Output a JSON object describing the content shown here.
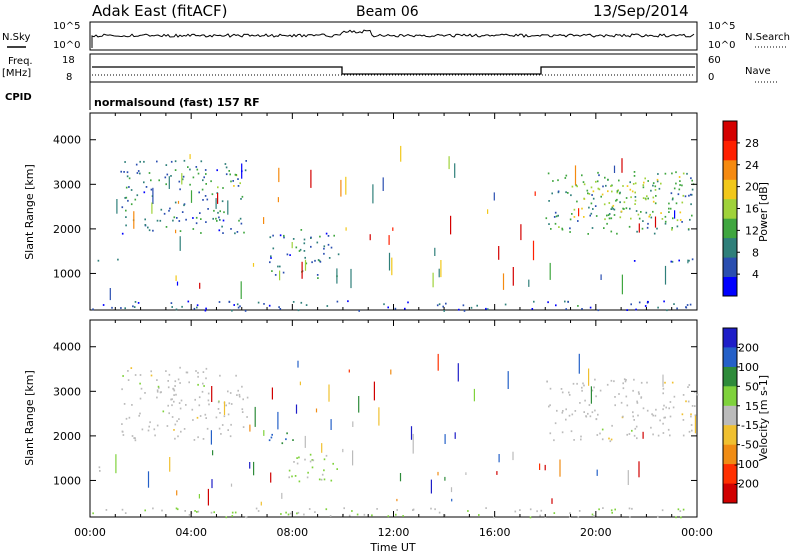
{
  "header": {
    "station": "Adak East (fitACF)",
    "beam": "Beam 06",
    "date": "13/Sep/2014"
  },
  "panels": {
    "nsky_label": "N.Sky",
    "nsky_ticks": [
      "10^5",
      "10^0"
    ],
    "nsearch_label": "N.Search",
    "nsearch_ticks": [
      "10^5",
      "10^0"
    ],
    "freq_label": "Freq.",
    "freq_unit": "[MHz]",
    "freq_ticks": [
      "18",
      "8"
    ],
    "nave_label": "Nave",
    "nave_ticks": [
      "60",
      "0"
    ],
    "cpid_label": "CPID",
    "cpid_value": "normalsound (fast) 157 RF"
  },
  "colors": {
    "power": [
      "#0000ff",
      "#2a4eb0",
      "#2f7f7a",
      "#3fa63f",
      "#9fd23a",
      "#f2c81a",
      "#f58a10",
      "#ff2000",
      "#d40000"
    ],
    "velocity": [
      "#1e1ec8",
      "#2460c8",
      "#2e8b3a",
      "#7fd23c",
      "#bbbbbb",
      "#f0c030",
      "#f08c14",
      "#ff3000",
      "#d00000"
    ]
  },
  "chart_data": [
    {
      "type": "heatmap",
      "ylabel": "Slant Range [km]",
      "ylim": [
        180,
        4600
      ],
      "yticks": [
        1000,
        2000,
        3000,
        4000
      ],
      "xlabel": "Time UT",
      "xlim": [
        0,
        24
      ],
      "xticks": [
        "00:00",
        "04:00",
        "08:00",
        "12:00",
        "16:00",
        "20:00",
        "00:00"
      ],
      "colorbar_label": "Power [dB]",
      "colorbar_ticks": [
        "28",
        "24",
        "20",
        "16",
        "12",
        "8",
        "4"
      ],
      "echo_regions": [
        {
          "t0": 0.3,
          "t1": 1.1,
          "r0": 1220,
          "r1": 1340,
          "value": 4
        },
        {
          "t0": 1.2,
          "t1": 6.2,
          "r0": 1900,
          "r1": 3550,
          "value": 8
        },
        {
          "t0": 5.0,
          "t1": 6.0,
          "r0": 2900,
          "r1": 3300,
          "value": 16
        },
        {
          "t0": 7.0,
          "t1": 9.8,
          "r0": 900,
          "r1": 2000,
          "value": 8
        },
        {
          "t0": 18.0,
          "t1": 24.0,
          "r0": 1900,
          "r1": 3300,
          "value": 10
        },
        {
          "t0": 19.0,
          "t1": 23.5,
          "r0": 2200,
          "r1": 3200,
          "value": 16
        },
        {
          "t0": 20.5,
          "t1": 24.0,
          "r0": 1250,
          "r1": 1350,
          "value": 4
        },
        {
          "t0": 0.0,
          "t1": 24.0,
          "r0": 180,
          "r1": 400,
          "value": 6
        }
      ]
    },
    {
      "type": "heatmap",
      "ylabel": "Slant Range [km]",
      "ylim": [
        180,
        4600
      ],
      "yticks": [
        1000,
        2000,
        3000,
        4000
      ],
      "xlabel": "Time UT",
      "xlim": [
        0,
        24
      ],
      "xticks": [
        "00:00",
        "04:00",
        "08:00",
        "12:00",
        "16:00",
        "20:00",
        "00:00"
      ],
      "colorbar_label": "Velocity [m s-1]",
      "colorbar_ticks": [
        "200",
        "100",
        "50",
        "15",
        "-15",
        "-50",
        "-100",
        "-200"
      ],
      "echo_regions": [
        {
          "t0": 0.3,
          "t1": 1.1,
          "r0": 1220,
          "r1": 1340,
          "value": 0
        },
        {
          "t0": 1.2,
          "t1": 6.2,
          "r0": 1900,
          "r1": 3550,
          "value": 0
        },
        {
          "t0": 7.0,
          "t1": 8.0,
          "r0": 1700,
          "r1": 2100,
          "value": 150
        },
        {
          "t0": 7.5,
          "t1": 9.8,
          "r0": 900,
          "r1": 1600,
          "value": 40
        },
        {
          "t0": 18.0,
          "t1": 24.0,
          "r0": 1900,
          "r1": 3300,
          "value": 0
        },
        {
          "t0": 0.0,
          "t1": 24.0,
          "r0": 180,
          "r1": 400,
          "value": 20
        }
      ]
    }
  ]
}
